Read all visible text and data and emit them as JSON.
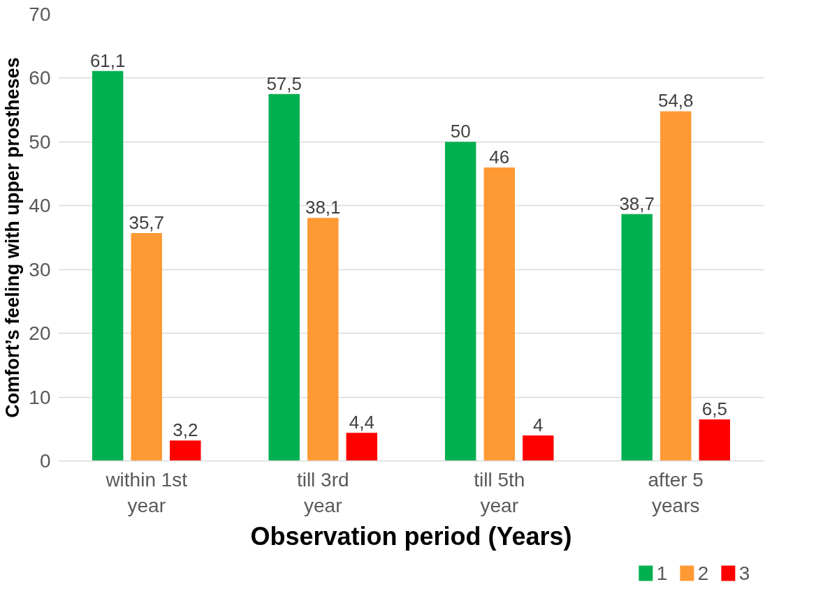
{
  "chart_data": {
    "type": "bar",
    "xlabel": "Observation period (Years)",
    "ylabel": "Comfort’s feeling with upper prostheses",
    "categories": [
      "within 1st year",
      "till 3rd year",
      "till 5th year",
      "after 5 years"
    ],
    "series": [
      {
        "name": "1",
        "color": "#00b050",
        "values": [
          61.1,
          57.5,
          50,
          38.7
        ],
        "value_labels": [
          "61,1",
          "57,5",
          "50",
          "38,7"
        ]
      },
      {
        "name": "2",
        "color": "#ff9933",
        "values": [
          35.7,
          38.1,
          46,
          54.8
        ],
        "value_labels": [
          "35,7",
          "38,1",
          "46",
          "54,8"
        ]
      },
      {
        "name": "3",
        "color": "#ff0000",
        "values": [
          3.2,
          4.4,
          4,
          6.5
        ],
        "value_labels": [
          "3,2",
          "4,4",
          "4",
          "6,5"
        ]
      }
    ],
    "ylim": [
      0,
      70
    ],
    "yticks": [
      0,
      10,
      20,
      30,
      40,
      50,
      60,
      70
    ],
    "grid": "y",
    "legend": "bottom right"
  }
}
